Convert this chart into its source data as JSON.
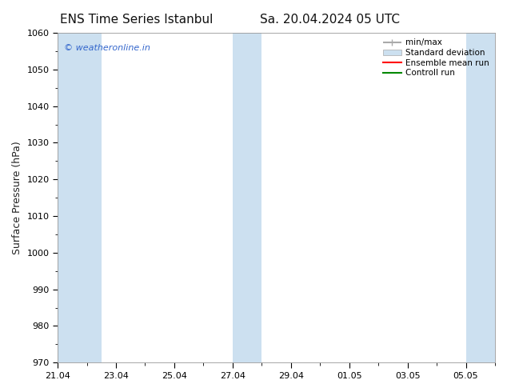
{
  "title_left": "ENS Time Series Istanbul",
  "title_right": "Sa. 20.04.2024 05 UTC",
  "ylabel": "Surface Pressure (hPa)",
  "ylim": [
    970,
    1060
  ],
  "yticks": [
    970,
    980,
    990,
    1000,
    1010,
    1020,
    1030,
    1040,
    1050,
    1060
  ],
  "xlabels": [
    "21.04",
    "23.04",
    "25.04",
    "27.04",
    "29.04",
    "01.05",
    "03.05",
    "05.05"
  ],
  "xtick_positions": [
    0,
    2,
    4,
    6,
    8,
    10,
    12,
    14
  ],
  "n_days": 15,
  "background_color": "#ffffff",
  "plot_bg_color": "#ffffff",
  "band_color": "#cce0f0",
  "watermark": "© weatheronline.in",
  "watermark_color": "#3366cc",
  "legend_items": [
    {
      "label": "min/max",
      "color": "#aaaaaa",
      "lw": 1.5,
      "type": "line_err"
    },
    {
      "label": "Standard deviation",
      "color": "#cce0f0",
      "lw": 6,
      "type": "patch"
    },
    {
      "label": "Ensemble mean run",
      "color": "#ff0000",
      "lw": 1.5,
      "type": "line"
    },
    {
      "label": "Controll run",
      "color": "#008800",
      "lw": 1.5,
      "type": "line"
    }
  ],
  "band_data": [
    [
      0.0,
      0.5
    ],
    [
      0.5,
      1.0
    ],
    [
      6.0,
      0.5
    ],
    [
      6.5,
      0.5
    ],
    [
      14.0,
      0.5
    ],
    [
      14.5,
      0.5
    ]
  ],
  "title_fontsize": 11,
  "tick_fontsize": 8,
  "label_fontsize": 9,
  "legend_fontsize": 7.5
}
